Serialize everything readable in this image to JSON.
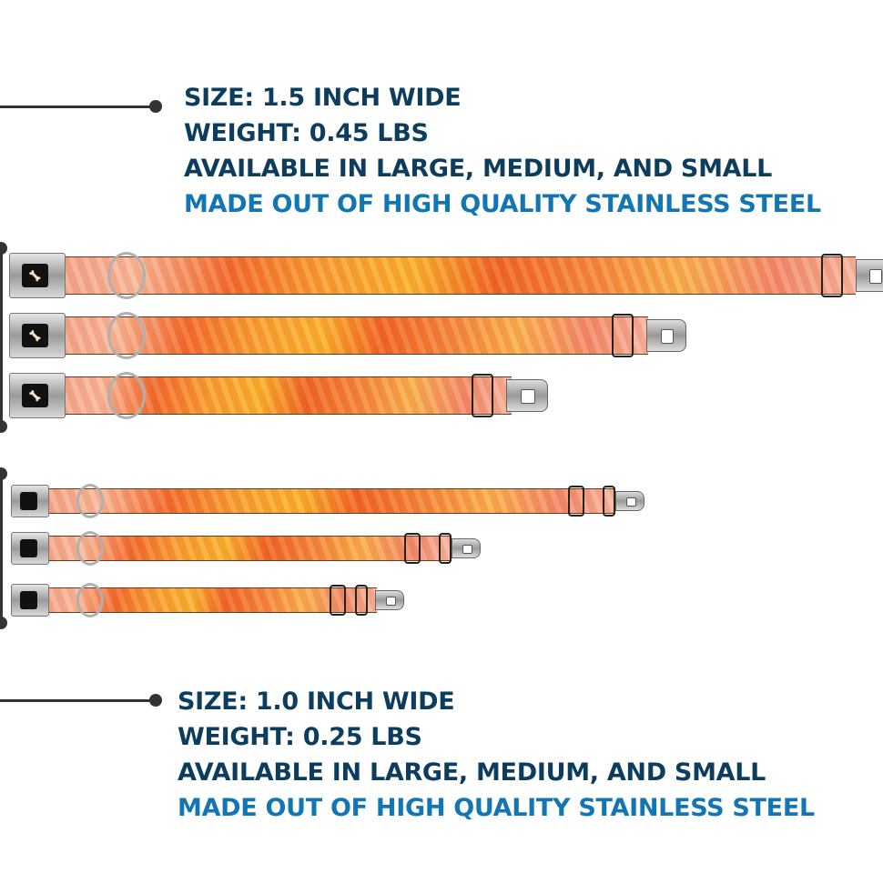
{
  "large": {
    "lines": [
      "SIZE: 1.5 INCH WIDE",
      "WEIGHT: 0.45 LBS",
      "AVAILABLE IN LARGE, MEDIUM, AND SMALL",
      "MADE OUT OF HIGH QUALITY STAINLESS STEEL"
    ],
    "sizes": [
      "Large",
      "Medium",
      "Small"
    ]
  },
  "small": {
    "lines": [
      "SIZE: 1.0 INCH WIDE",
      "WEIGHT: 0.25 LBS",
      "AVAILABLE IN LARGE, MEDIUM, AND SMALL",
      "MADE OUT OF HIGH QUALITY STAINLESS STEEL"
    ],
    "sizes": [
      "Large",
      "Medium",
      "Small"
    ]
  },
  "colors": {
    "heading": "#0d3d5e",
    "highlight": "#1276b5",
    "strap": "#f36a2a"
  },
  "icons": {
    "buckle_logo": "bone-icon"
  }
}
